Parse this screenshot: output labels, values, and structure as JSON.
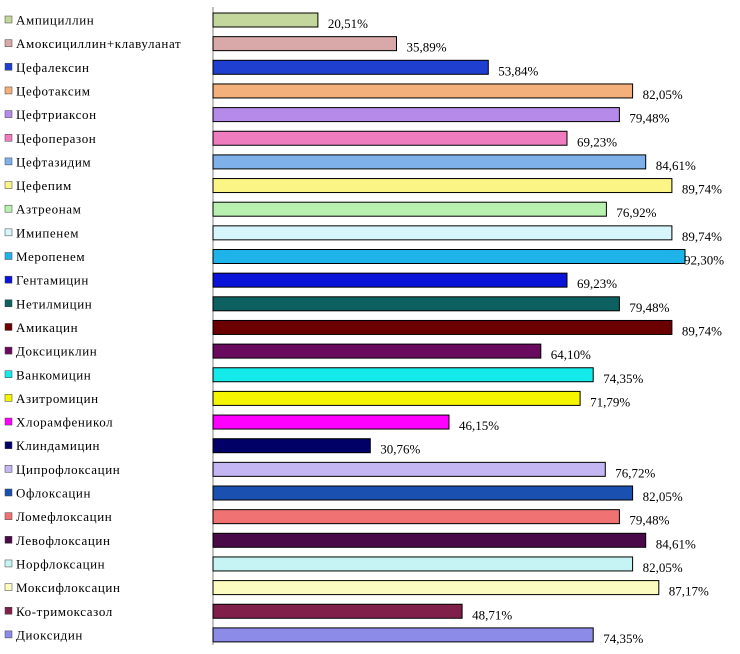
{
  "chart_data": {
    "type": "bar",
    "orientation": "horizontal",
    "xlim": [
      0,
      100
    ],
    "grid": false,
    "legend": "left",
    "categories": [
      "Ампициллин",
      "Амоксициллин+клавуланат",
      "Цефалексин",
      "Цефотаксим",
      "Цефтриаксон",
      "Цефоперазон",
      "Цефтазидим",
      "Цефепим",
      "Азтреонам",
      "Имипенем",
      "Меропенем",
      "Гентамицин",
      "Нетилмицин",
      "Амикацин",
      "Доксициклин",
      "Ванкомицин",
      "Азитромицин",
      "Хлорамфеникол",
      "Клиндамицин",
      "Ципрофлоксацин",
      "Офлоксацин",
      "Ломефлоксацин",
      "Левофлоксацин",
      "Норфлоксацин",
      "Моксифлоксацин",
      "Ко-тримоксазол",
      "Диоксидин"
    ],
    "values": [
      20.51,
      35.89,
      53.84,
      82.05,
      79.48,
      69.23,
      84.61,
      89.74,
      76.92,
      89.74,
      92.3,
      69.23,
      79.48,
      89.74,
      64.1,
      74.35,
      71.79,
      46.15,
      30.76,
      76.72,
      82.05,
      79.48,
      84.61,
      82.05,
      87.17,
      48.71,
      74.35
    ],
    "value_labels": [
      "20,51%",
      "35,89%",
      "53,84%",
      "82,05%",
      "79,48%",
      "69,23%",
      "84,61%",
      "89,74%",
      "76,92%",
      "89,74%",
      "92,30%",
      "69,23%",
      "79,48%",
      "89,74%",
      "64,10%",
      "74,35%",
      "71,79%",
      "46,15%",
      "30,76%",
      "76,72%",
      "82,05%",
      "79,48%",
      "84,61%",
      "82,05%",
      "87,17%",
      "48,71%",
      "74,35%"
    ],
    "colors": [
      "#c3d69b",
      "#d9a8a8",
      "#1f3fd0",
      "#f4b07a",
      "#b58ae8",
      "#f07cc0",
      "#7eb0ea",
      "#fbf586",
      "#b8f0b0",
      "#d6f6fb",
      "#1eb4ea",
      "#0a14d8",
      "#0d6060",
      "#6a0000",
      "#6a0a5e",
      "#14eaea",
      "#f5f500",
      "#ff00ff",
      "#000066",
      "#c3b6f2",
      "#1a50b0",
      "#f07272",
      "#4a0a4a",
      "#c6f4f4",
      "#fdfcc0",
      "#80204a",
      "#8c8ce8"
    ]
  }
}
